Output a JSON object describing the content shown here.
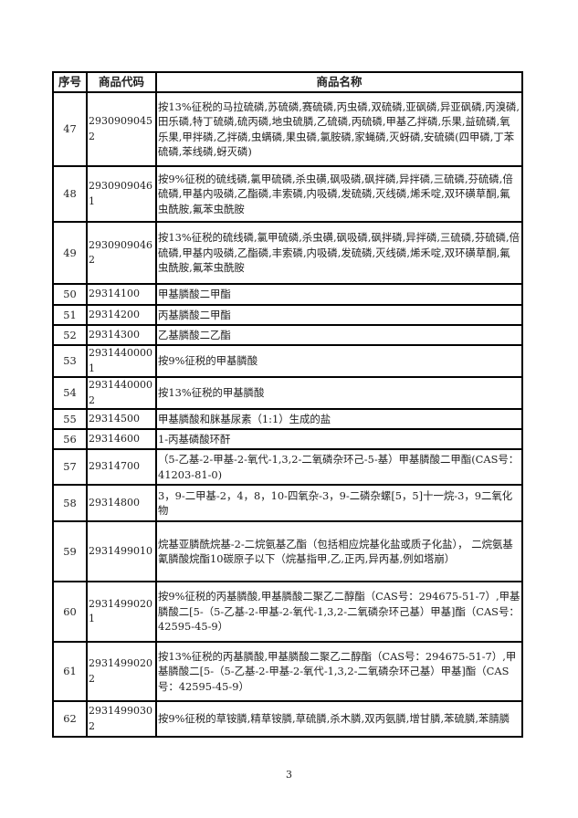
{
  "table": {
    "headers": [
      "序号",
      "商品代码",
      "商品名称"
    ],
    "rows": [
      {
        "seq": "47",
        "code": "29309090452",
        "name": "按13%征税的马拉硫磷,苏硫磷,赛硫磷,丙虫磷,双硫磷,亚砜磷,异亚砜磷,丙溴磷,田乐磷,特丁硫磷,硫丙磷,地虫硫膦,乙硫磷,丙硫磷,甲基乙拌磷,乐果,益硫磷,氧乐果,甲拌磷,乙拌磷,虫螨磷,果虫磷,氯胺磷,家蝇磷,灭蚜磷,安硫磷(四甲磷,丁苯硫磷,苯线磷,蚜灭磷)"
      },
      {
        "seq": "48",
        "code": "29309090461",
        "name": "按9%征税的硫线磷,氯甲硫磷,杀虫磺,砜吸磷,砜拌磷,异拌磷,三硫磷,芬硫磷,倍硫磷,甲基内吸磷,乙酯磷,丰索磷,内吸磷,发硫磷,灭线磷,烯禾啶,双环磺草酮,氟虫酰胺,氟苯虫酰胺"
      },
      {
        "seq": "49",
        "code": "29309090462",
        "name": "按13%征税的硫线磷,氯甲硫磷,杀虫磺,砜吸磷,砜拌磷,异拌磷,三硫磷,芬硫磷,倍硫磷,甲基内吸磷,乙酯磷,丰索磷,内吸磷,发硫磷,灭线磷,烯禾啶,双环磺草酮,氟虫酰胺,氟苯虫酰胺"
      },
      {
        "seq": "50",
        "code": "29314100",
        "name": "甲基膦酸二甲酯"
      },
      {
        "seq": "51",
        "code": "29314200",
        "name": "丙基膦酸二甲酯"
      },
      {
        "seq": "52",
        "code": "29314300",
        "name": "乙基膦酸二乙酯"
      },
      {
        "seq": "53",
        "code": "29314400001",
        "name": "按9%征税的甲基膦酸"
      },
      {
        "seq": "54",
        "code": "29314400002",
        "name": "按13%征税的甲基膦酸"
      },
      {
        "seq": "55",
        "code": "29314500",
        "name": "甲基膦酸和脒基尿素（1:1）生成的盐"
      },
      {
        "seq": "56",
        "code": "29314600",
        "name": "1-丙基磷酸环酐"
      },
      {
        "seq": "57",
        "code": "29314700",
        "name": "（5-乙基-2-甲基-2-氧代-1,3,2-二氧磷杂环己-5-基）甲基膦酸二甲酯(CAS号：41203-81-0)"
      },
      {
        "seq": "58",
        "code": "29314800",
        "name": "3，9-二甲基-2，4，8，10-四氧杂-3，9-二磷杂螺[5，5]十一烷-3，9二氧化物"
      },
      {
        "seq": "59",
        "code": "2931499010",
        "name": "烷基亚膦酰烷基-2-二烷氨基乙酯（包括相应烷基化盐或质子化盐）， 二烷氨基氰膦酸烷酯10碳原子以下（烷基指甲,乙,正丙,异丙基,例如塔崩）"
      },
      {
        "seq": "60",
        "code": "29314990201",
        "name": "按9%征税的丙基膦酸,甲基膦酸二聚乙二醇酯（CAS号：294675-51-7）,甲基膦酸二[5-（5-乙基-2-甲基-2-氧代-1,3,2-二氧磷杂环己基）甲基]酯（CAS号：42595-45-9）"
      },
      {
        "seq": "61",
        "code": "29314990202",
        "name": "按13%征税的丙基膦酸,甲基膦酸二聚乙二醇酯（CAS号：294675-51-7）,甲基膦酸二[5-（5-乙基-2-甲基-2-氧代-1,3,2-二氧磷杂环己基）甲基]酯（CAS号：42595-45-9）"
      },
      {
        "seq": "62",
        "code": "29314990302",
        "name": "按9%征税的草铵膦,精草铵膦,草硫膦,杀木膦,双丙氨膦,增甘膦,苯硫膦,苯腈膦"
      }
    ]
  },
  "footer": {
    "page_number": "3"
  }
}
